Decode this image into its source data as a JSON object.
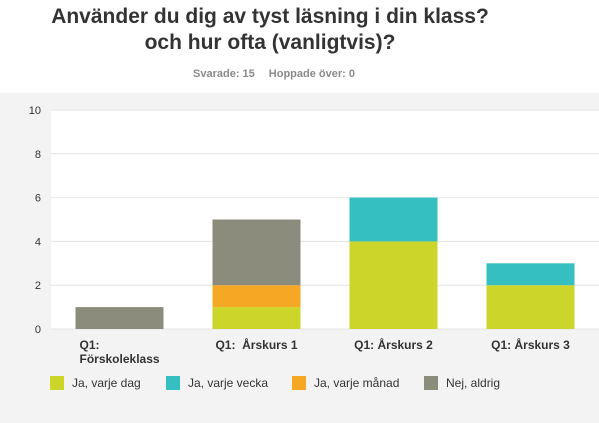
{
  "survey": {
    "title_line1": "Använder du dig av tyst läsning i din klass?",
    "title_line2": "och hur ofta (vanligtvis)?",
    "answered_label": "Svarade: 15",
    "skipped_label": "Hoppade över: 0"
  },
  "chart_data": {
    "type": "bar",
    "stacked": true,
    "title": "Använder du dig av tyst läsning i din klass? och hur ofta (vanligtvis)?",
    "categories": [
      "Q1: Förskoleklass",
      "Q1: Årskurs 1",
      "Q1: Årskurs 2",
      "Q1: Årskurs 3"
    ],
    "category_lines": [
      [
        "Q1:",
        "Förskoleklass"
      ],
      [
        "Q1:  Årskurs 1"
      ],
      [
        "Q1: Årskurs 2"
      ],
      [
        "Q1: Årskurs 3"
      ]
    ],
    "series": [
      {
        "name": "Ja, varje dag",
        "values": [
          0,
          1,
          4,
          2
        ],
        "color": "#ccd62a"
      },
      {
        "name": "Ja, varje vecka",
        "values": [
          0,
          0,
          2,
          1
        ],
        "color": "#35bfc1"
      },
      {
        "name": "Ja, varje månad",
        "values": [
          0,
          1,
          0,
          0
        ],
        "color": "#f5a823"
      },
      {
        "name": "Nej, aldrig",
        "values": [
          1,
          3,
          0,
          0
        ],
        "color": "#8c8c7c"
      }
    ],
    "ylim": [
      0,
      10
    ],
    "yticks": [
      0,
      2,
      4,
      6,
      8,
      10
    ],
    "grid": true,
    "legend": "bottom",
    "plot_background": "#ffffff",
    "panel_background": "#f3f3f3",
    "gridline_color": "#e4e4e4"
  }
}
